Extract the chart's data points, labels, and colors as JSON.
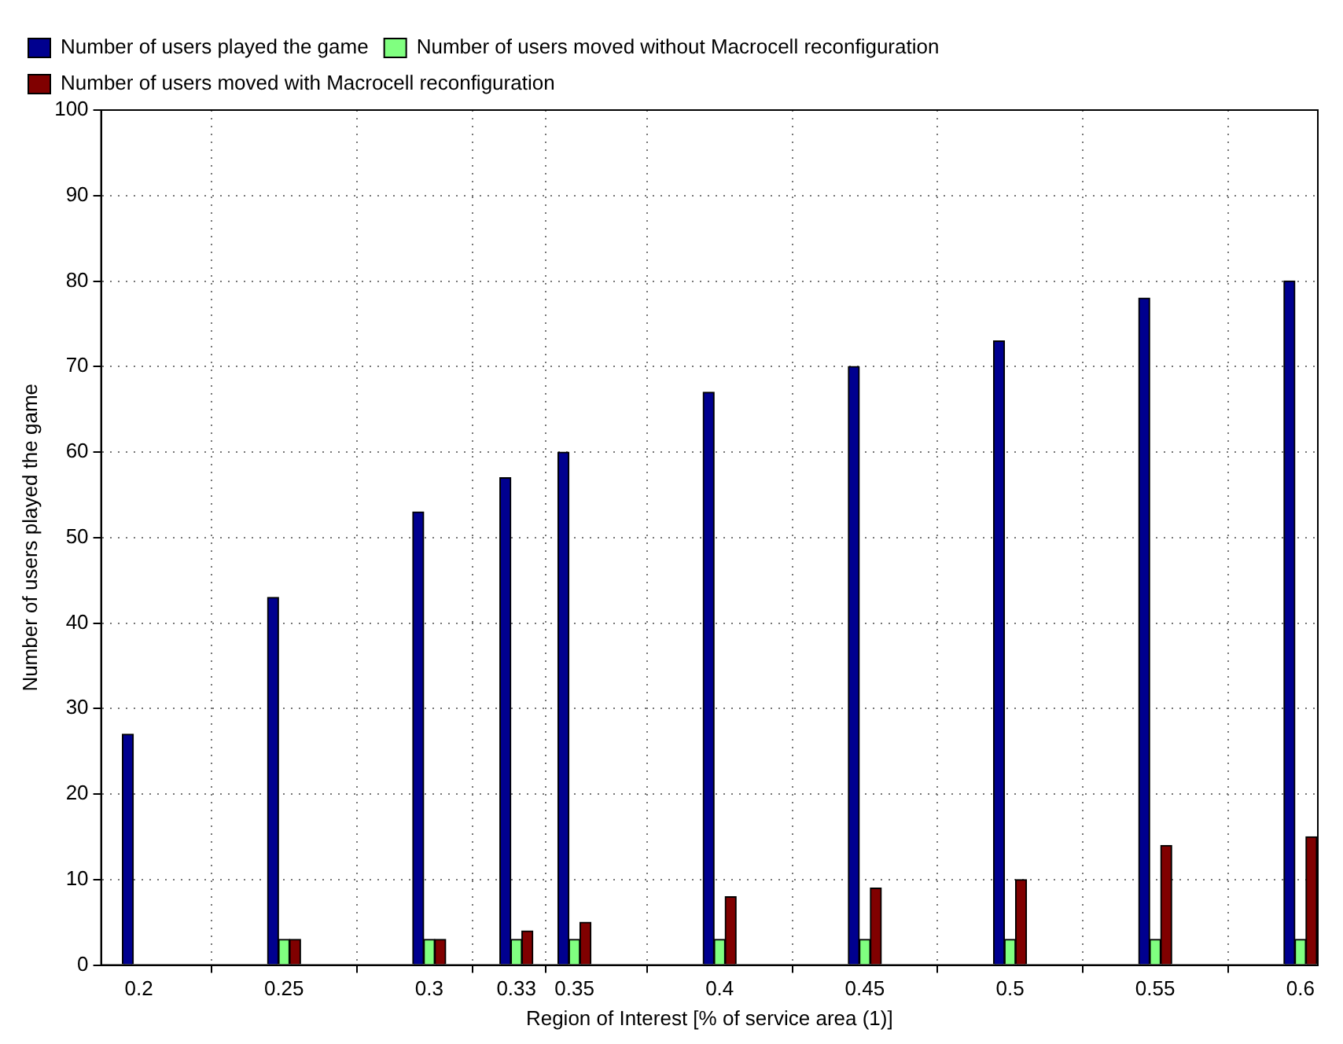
{
  "chart_data": {
    "type": "bar",
    "xlabel": "Region of Interest [% of service area (1)]",
    "ylabel": "Number of users played the game",
    "x": [
      0.2,
      0.25,
      0.3,
      0.33,
      0.35,
      0.4,
      0.45,
      0.5,
      0.55,
      0.6
    ],
    "series": [
      {
        "name": "Number of users played the game",
        "color": "#00008f",
        "values": [
          27,
          43,
          53,
          57,
          60,
          67,
          70,
          73,
          78,
          80
        ]
      },
      {
        "name": "Number of users moved without Macrocell reconfiguration",
        "color": "#80ff80",
        "values": [
          0,
          3,
          3,
          3,
          3,
          3,
          3,
          3,
          3,
          3
        ]
      },
      {
        "name": "Number of users moved with Macrocell reconfiguration",
        "color": "#800000",
        "values": [
          0,
          3,
          3,
          4,
          5,
          8,
          9,
          10,
          14,
          15
        ]
      }
    ],
    "xlim": [
      0.187,
      0.606
    ],
    "xticks": [
      0.2,
      0.25,
      0.3,
      0.33,
      0.35,
      0.4,
      0.45,
      0.5,
      0.55,
      0.6
    ],
    "ylim": [
      0,
      100
    ],
    "yticks": [
      0,
      10,
      20,
      30,
      40,
      50,
      60,
      70,
      80,
      90,
      100
    ],
    "grid": true,
    "legend": "top left"
  }
}
